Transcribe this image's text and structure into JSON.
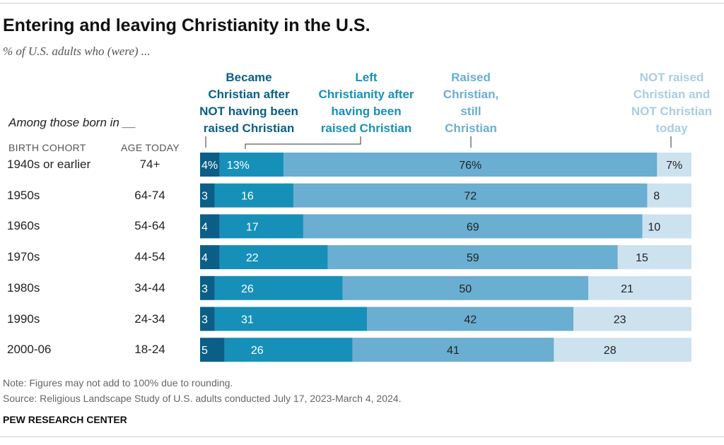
{
  "title": "Entering and leaving Christianity in the U.S.",
  "subtitle": "% of U.S. adults who (were) ...",
  "among_label": "Among those born in __",
  "col_birth_cohort": "BIRTH COHORT",
  "col_age_today": "AGE TODAY",
  "note": "Note: Figures may not add to 100% due to rounding.",
  "source": "Source: Religious Landscape Study of U.S. adults conducted July 17, 2023-March 4, 2024.",
  "organization": "PEW RESEARCH CENTER",
  "colors": {
    "became_christian": "#0b5e86",
    "left_christianity": "#1790b9",
    "still_christian": "#6aaed1",
    "not_christian": "#cde2ef"
  },
  "chart_data": {
    "type": "bar",
    "orientation": "horizontal",
    "stacked": true,
    "categories": [
      "1940s or earlier",
      "1950s",
      "1960s",
      "1970s",
      "1980s",
      "1990s",
      "2000-06"
    ],
    "ages": [
      "74+",
      "64-74",
      "54-64",
      "44-54",
      "34-44",
      "24-34",
      "18-24"
    ],
    "series": [
      {
        "name": "Became Christian after NOT having been raised Christian",
        "values": [
          4,
          3,
          4,
          4,
          3,
          3,
          5
        ],
        "first_label": "4%"
      },
      {
        "name": "Left Christianity after having been raised Christian",
        "values": [
          13,
          16,
          17,
          22,
          26,
          31,
          26
        ],
        "first_label": "13%"
      },
      {
        "name": "Raised Christian, still Christian",
        "values": [
          76,
          72,
          69,
          59,
          50,
          42,
          41
        ],
        "first_label": "76%"
      },
      {
        "name": "NOT raised Christian and NOT Christian today",
        "values": [
          7,
          8,
          10,
          15,
          21,
          23,
          28
        ],
        "first_label": "7%"
      }
    ],
    "xlim": [
      0,
      100
    ],
    "legend": "column headers above bars",
    "grid": false
  }
}
